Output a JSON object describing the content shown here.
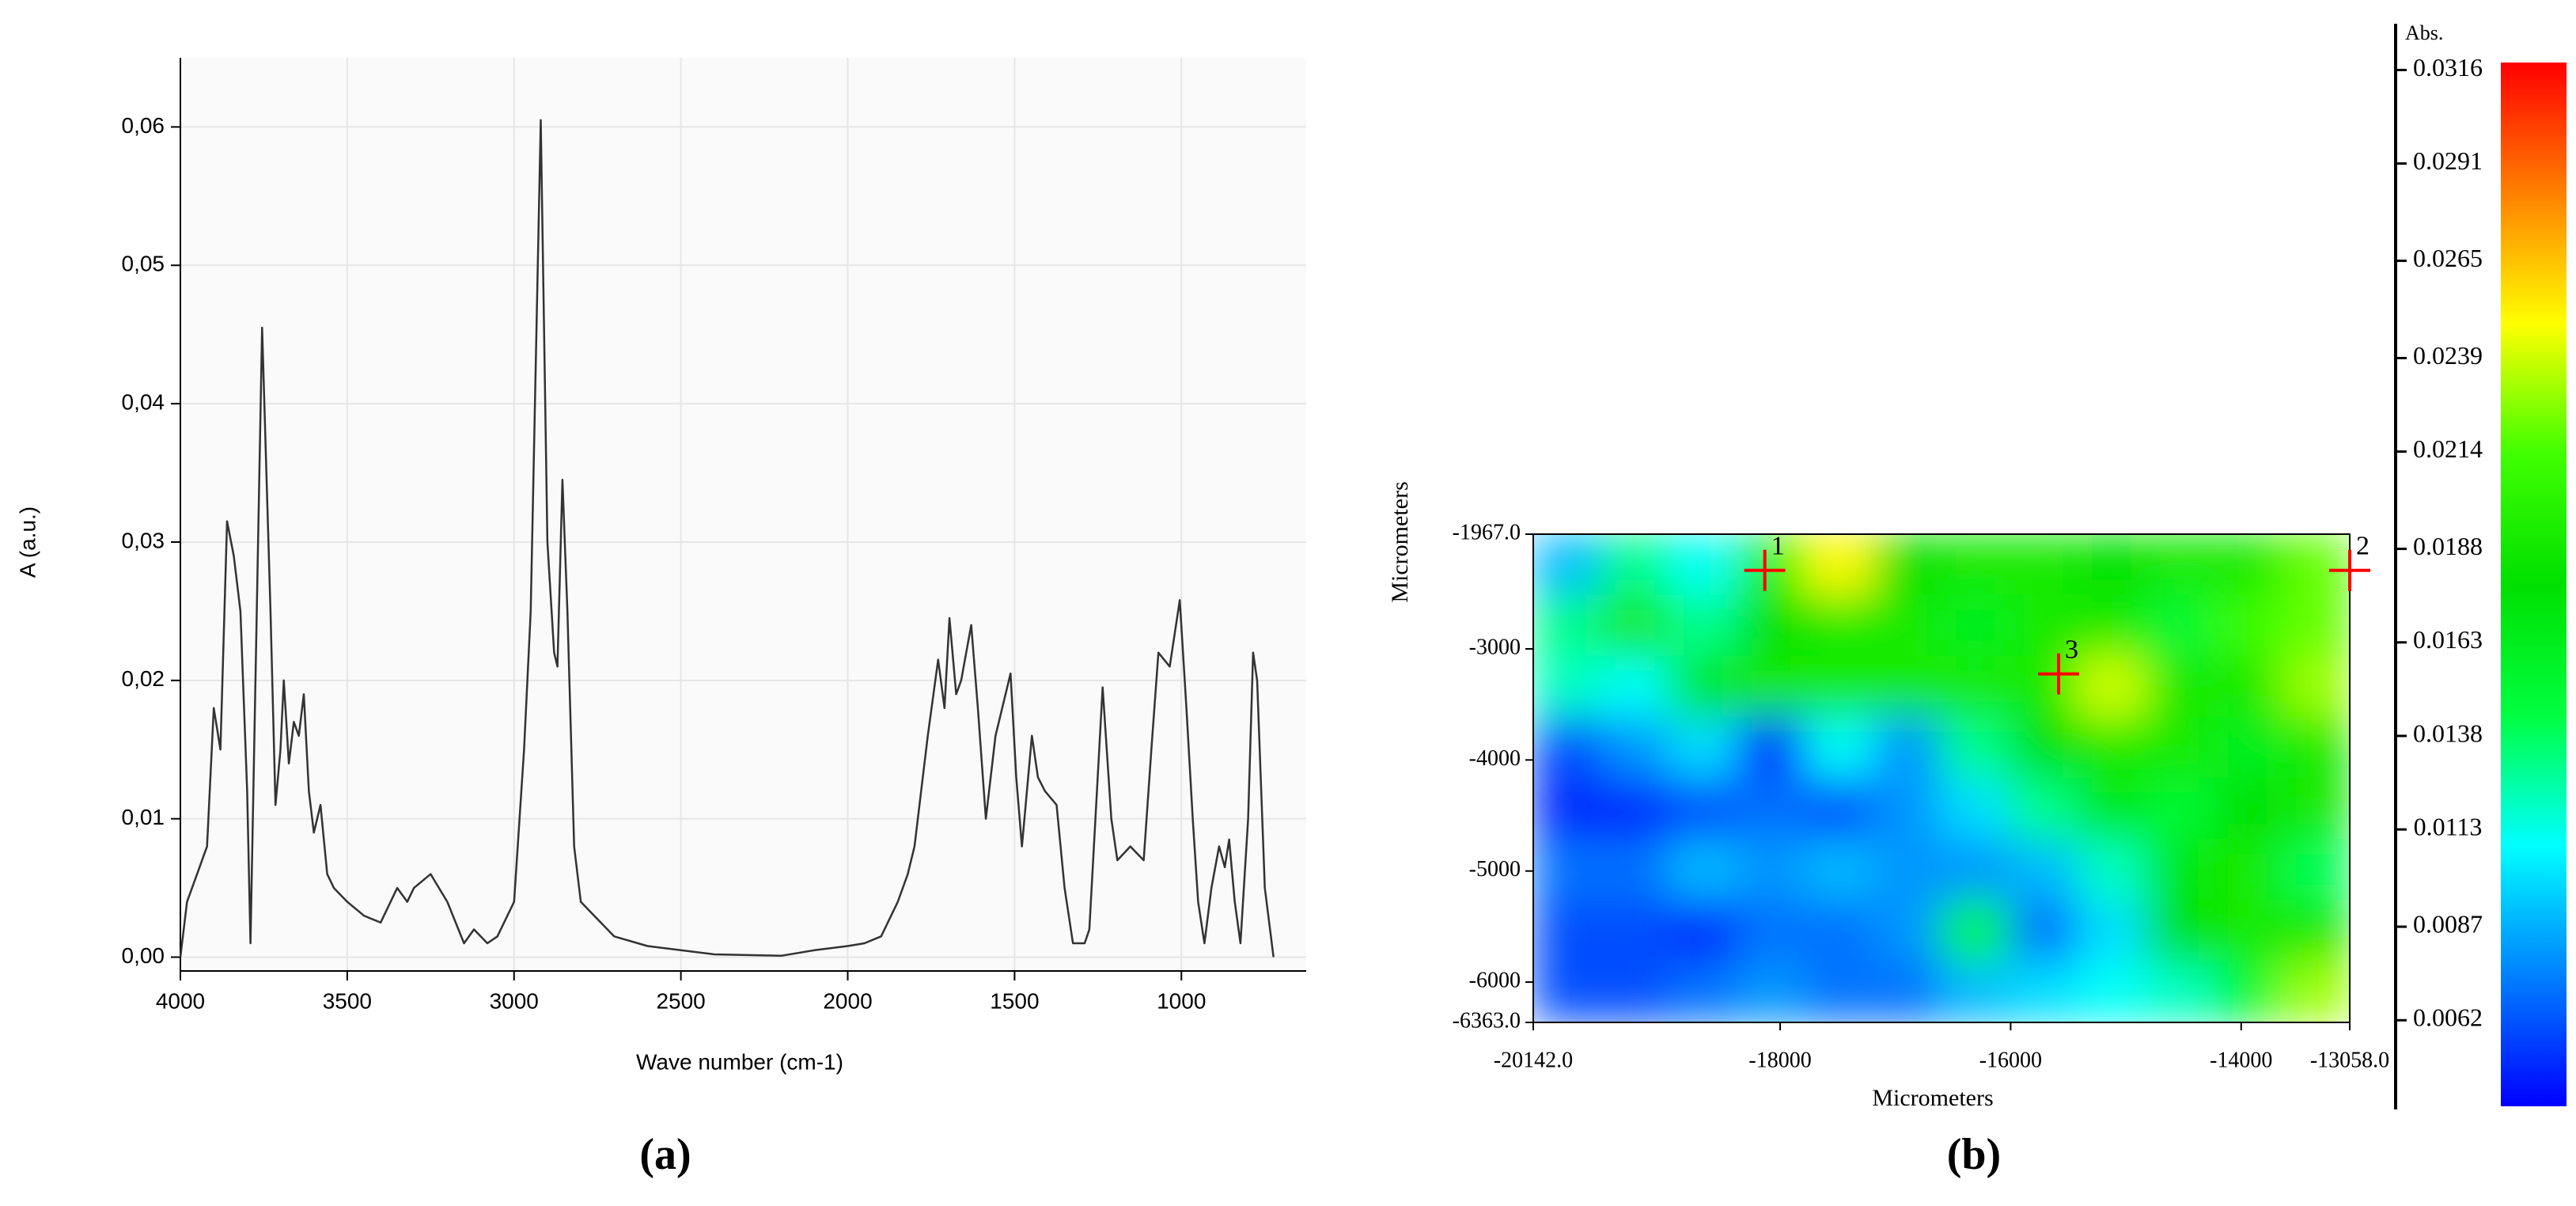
{
  "chart_data": [
    {
      "type": "line",
      "panel_label": "(a)",
      "xlabel": "Wave number (cm-1)",
      "ylabel": "A (a.u.)",
      "color": "#333333",
      "grid": true,
      "xlim": [
        4000,
        626
      ],
      "ylim": [
        -0.001,
        0.065
      ],
      "xticks": [
        4000,
        3500,
        3000,
        2500,
        2000,
        1500,
        1000
      ],
      "yticks": [
        {
          "value": 0,
          "label": "0,00"
        },
        {
          "value": 0.01,
          "label": "0,01"
        },
        {
          "value": 0.02,
          "label": "0,02"
        },
        {
          "value": 0.03,
          "label": "0,03"
        },
        {
          "value": 0.04,
          "label": "0,04"
        },
        {
          "value": 0.05,
          "label": "0,05"
        },
        {
          "value": 0.06,
          "label": "0,06"
        }
      ],
      "x": [
        4000,
        3980,
        3950,
        3920,
        3900,
        3880,
        3860,
        3840,
        3820,
        3800,
        3790,
        3775,
        3755,
        3730,
        3715,
        3700,
        3690,
        3675,
        3660,
        3645,
        3630,
        3615,
        3600,
        3580,
        3560,
        3540,
        3500,
        3450,
        3400,
        3350,
        3320,
        3300,
        3250,
        3200,
        3150,
        3120,
        3080,
        3050,
        3000,
        2970,
        2950,
        2920,
        2900,
        2880,
        2870,
        2855,
        2840,
        2820,
        2800,
        2700,
        2600,
        2500,
        2400,
        2200,
        2100,
        2000,
        1950,
        1900,
        1850,
        1820,
        1800,
        1760,
        1729,
        1710,
        1695,
        1675,
        1660,
        1630,
        1610,
        1586,
        1557,
        1512,
        1495,
        1478,
        1448,
        1430,
        1409,
        1374,
        1350,
        1325,
        1290,
        1276,
        1236,
        1210,
        1192,
        1153,
        1113,
        1090,
        1069,
        1035,
        1005,
        985,
        966,
        950,
        931,
        910,
        887,
        870,
        857,
        840,
        823,
        800,
        785,
        773,
        750,
        724
      ],
      "values": [
        0.0,
        0.004,
        0.006,
        0.008,
        0.018,
        0.015,
        0.0315,
        0.029,
        0.025,
        0.012,
        0.001,
        0.02,
        0.0455,
        0.025,
        0.011,
        0.015,
        0.02,
        0.014,
        0.017,
        0.016,
        0.019,
        0.012,
        0.009,
        0.011,
        0.006,
        0.005,
        0.004,
        0.003,
        0.0025,
        0.005,
        0.004,
        0.005,
        0.006,
        0.004,
        0.001,
        0.002,
        0.001,
        0.0015,
        0.004,
        0.015,
        0.025,
        0.0605,
        0.03,
        0.022,
        0.021,
        0.0345,
        0.025,
        0.008,
        0.004,
        0.0015,
        0.0008,
        0.0005,
        0.0002,
        0.0001,
        0.0005,
        0.0008,
        0.001,
        0.0015,
        0.004,
        0.006,
        0.008,
        0.016,
        0.0215,
        0.018,
        0.0245,
        0.019,
        0.02,
        0.024,
        0.018,
        0.01,
        0.016,
        0.0205,
        0.013,
        0.008,
        0.016,
        0.013,
        0.012,
        0.011,
        0.005,
        0.001,
        0.001,
        0.002,
        0.0195,
        0.01,
        0.007,
        0.008,
        0.007,
        0.015,
        0.022,
        0.021,
        0.0258,
        0.018,
        0.01,
        0.004,
        0.001,
        0.005,
        0.008,
        0.0065,
        0.0085,
        0.004,
        0.001,
        0.01,
        0.022,
        0.02,
        0.005,
        0.0
      ]
    },
    {
      "type": "heatmap",
      "panel_label": "(b)",
      "xlabel": "Micrometers",
      "ylabel": "Micrometers",
      "colorbar_label": "Abs.",
      "xlim": [
        -20142,
        -13058
      ],
      "ylim": [
        -1967,
        -6363
      ],
      "xticks": [
        {
          "value": -20142,
          "label": "-20142.0"
        },
        -18000,
        -16000,
        -14000,
        {
          "value": -13058,
          "label": "-13058.0"
        }
      ],
      "yticks": [
        {
          "value": -1967,
          "label": "-1967.0"
        },
        -3000,
        -4000,
        -5000,
        -6000,
        {
          "value": -6363,
          "label": "-6363.0"
        }
      ],
      "clim": [
        0.0039,
        0.0318
      ],
      "cticks": [
        0.0316,
        0.0291,
        0.0265,
        0.0239,
        0.0214,
        0.0188,
        0.0163,
        0.0138,
        0.0113,
        0.0087,
        0.0062
      ],
      "colormap": [
        "#0000ff",
        "#0080ff",
        "#00ffff",
        "#00ff40",
        "#00e000",
        "#40ff00",
        "#ffff00",
        "#ff8000",
        "#ff0000"
      ],
      "marker_color": "#ff0000",
      "values": [
        [
          0.009,
          0.013,
          0.011,
          0.02,
          0.025,
          0.018,
          0.019,
          0.019,
          0.018,
          0.019,
          0.019,
          0.022
        ],
        [
          0.013,
          0.019,
          0.013,
          0.018,
          0.019,
          0.019,
          0.016,
          0.019,
          0.019,
          0.015,
          0.021,
          0.022
        ],
        [
          0.012,
          0.011,
          0.017,
          0.019,
          0.019,
          0.019,
          0.019,
          0.019,
          0.024,
          0.019,
          0.019,
          0.023
        ],
        [
          0.006,
          0.008,
          0.01,
          0.005,
          0.011,
          0.008,
          0.013,
          0.018,
          0.019,
          0.019,
          0.016,
          0.019
        ],
        [
          0.005,
          0.005,
          0.006,
          0.007,
          0.006,
          0.008,
          0.01,
          0.013,
          0.017,
          0.015,
          0.018,
          0.019
        ],
        [
          0.007,
          0.007,
          0.009,
          0.008,
          0.009,
          0.008,
          0.008,
          0.009,
          0.012,
          0.017,
          0.019,
          0.014
        ],
        [
          0.006,
          0.006,
          0.005,
          0.007,
          0.007,
          0.008,
          0.015,
          0.007,
          0.01,
          0.018,
          0.019,
          0.019
        ],
        [
          0.006,
          0.006,
          0.007,
          0.008,
          0.007,
          0.007,
          0.009,
          0.01,
          0.011,
          0.012,
          0.015,
          0.023
        ]
      ],
      "points": [
        {
          "label": "1",
          "x": -18133,
          "y": -2293
        },
        {
          "label": "2",
          "x": -13058,
          "y": -2293
        },
        {
          "label": "3",
          "x": -15584,
          "y": -3225
        }
      ]
    }
  ]
}
